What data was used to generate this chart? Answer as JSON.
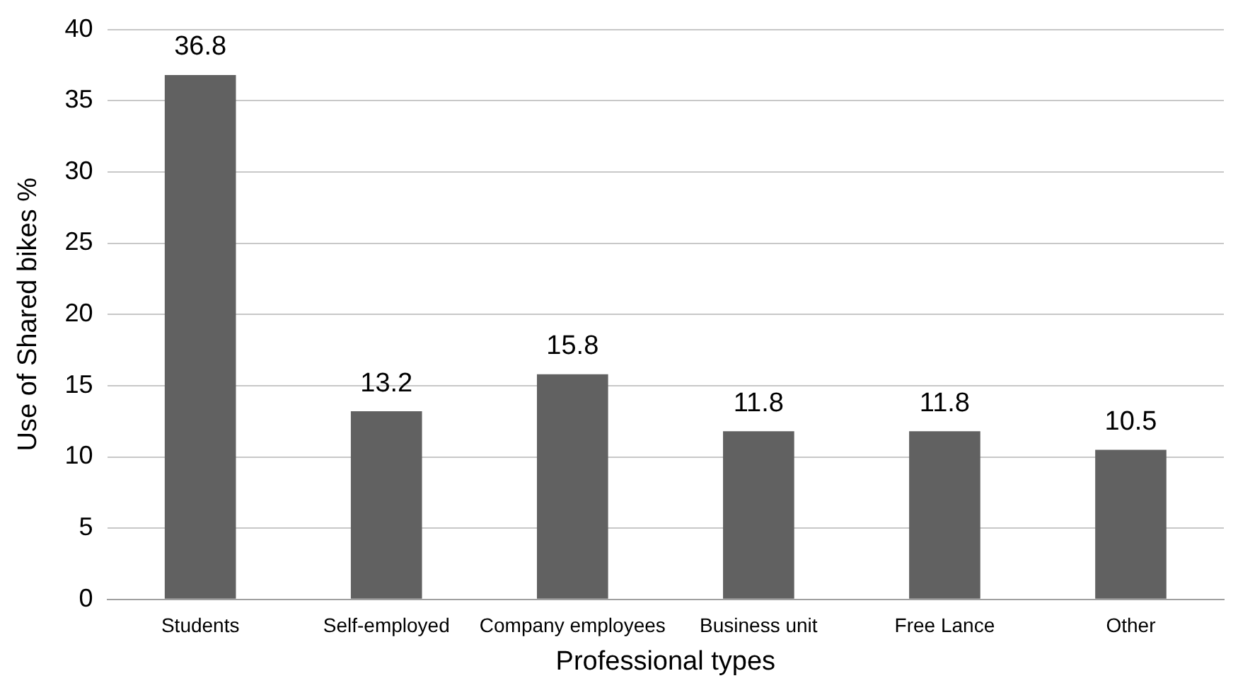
{
  "chart_data": {
    "type": "bar",
    "xlabel": "Professional types",
    "ylabel": "Use of Shared bikes %",
    "categories": [
      "Students",
      "Self-employed",
      "Company employees",
      "Business unit",
      "Free Lance",
      "Other"
    ],
    "values": [
      36.8,
      13.2,
      15.8,
      11.8,
      11.8,
      10.5
    ],
    "color": "#616161",
    "ylim": [
      0,
      40
    ],
    "yticks": [
      0,
      5,
      10,
      15,
      20,
      25,
      30,
      35,
      40
    ],
    "grid": "y",
    "legend": false,
    "data_labels": true
  }
}
